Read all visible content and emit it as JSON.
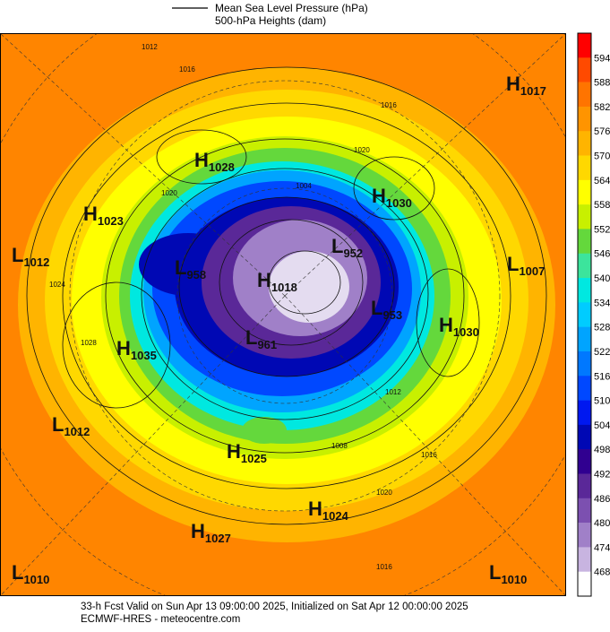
{
  "legend": {
    "pressure_label": "Mean Sea Level Pressure (hPa)",
    "heights_label": "500-hPa Heights (dam)"
  },
  "colorbar": {
    "labels": [
      594,
      588,
      582,
      576,
      570,
      564,
      558,
      552,
      546,
      540,
      534,
      528,
      522,
      516,
      510,
      504,
      498,
      492,
      486,
      480,
      474,
      468
    ],
    "colors": [
      "#ff0000",
      "#ff4a00",
      "#ff7400",
      "#ff9400",
      "#ffb400",
      "#ffd800",
      "#ffff00",
      "#c8f000",
      "#64d83c",
      "#3ce49c",
      "#00e8e0",
      "#00ccff",
      "#00a4ff",
      "#0078ff",
      "#0048ff",
      "#0018f0",
      "#0008b4",
      "#300090",
      "#5a2898",
      "#7c50b0",
      "#a080c8",
      "#c8b4e0",
      "#ffffff"
    ]
  },
  "centers": [
    {
      "letter": "H",
      "value": "1017"
    },
    {
      "letter": "H",
      "value": "1028"
    },
    {
      "letter": "H",
      "value": "1030"
    },
    {
      "letter": "H",
      "value": "1023"
    },
    {
      "letter": "L",
      "value": "1012"
    },
    {
      "letter": "L",
      "value": "1007"
    },
    {
      "letter": "L",
      "value": "958"
    },
    {
      "letter": "H",
      "value": "1018"
    },
    {
      "letter": "L",
      "value": "952"
    },
    {
      "letter": "L",
      "value": "953"
    },
    {
      "letter": "H",
      "value": "1030"
    },
    {
      "letter": "L",
      "value": "961"
    },
    {
      "letter": "H",
      "value": "1035"
    },
    {
      "letter": "L",
      "value": "1012"
    },
    {
      "letter": "H",
      "value": "1025"
    },
    {
      "letter": "H",
      "value": "1024"
    },
    {
      "letter": "H",
      "value": "1027"
    },
    {
      "letter": "L",
      "value": "1010"
    },
    {
      "letter": "L",
      "value": "1010"
    }
  ],
  "contour_labels": [
    "1012",
    "1016",
    "1020",
    "1024",
    "1028",
    "1016",
    "1020",
    "1004",
    "1008",
    "1012",
    "1016",
    "1020",
    "1016"
  ],
  "footer": {
    "line1": "33-h Fcst Valid on Sun Apr 13 09:00:00 2025, Initialized on Sat Apr 12 00:00:00 2025",
    "line2": "ECMWF-HRES  - meteocentre.com"
  }
}
